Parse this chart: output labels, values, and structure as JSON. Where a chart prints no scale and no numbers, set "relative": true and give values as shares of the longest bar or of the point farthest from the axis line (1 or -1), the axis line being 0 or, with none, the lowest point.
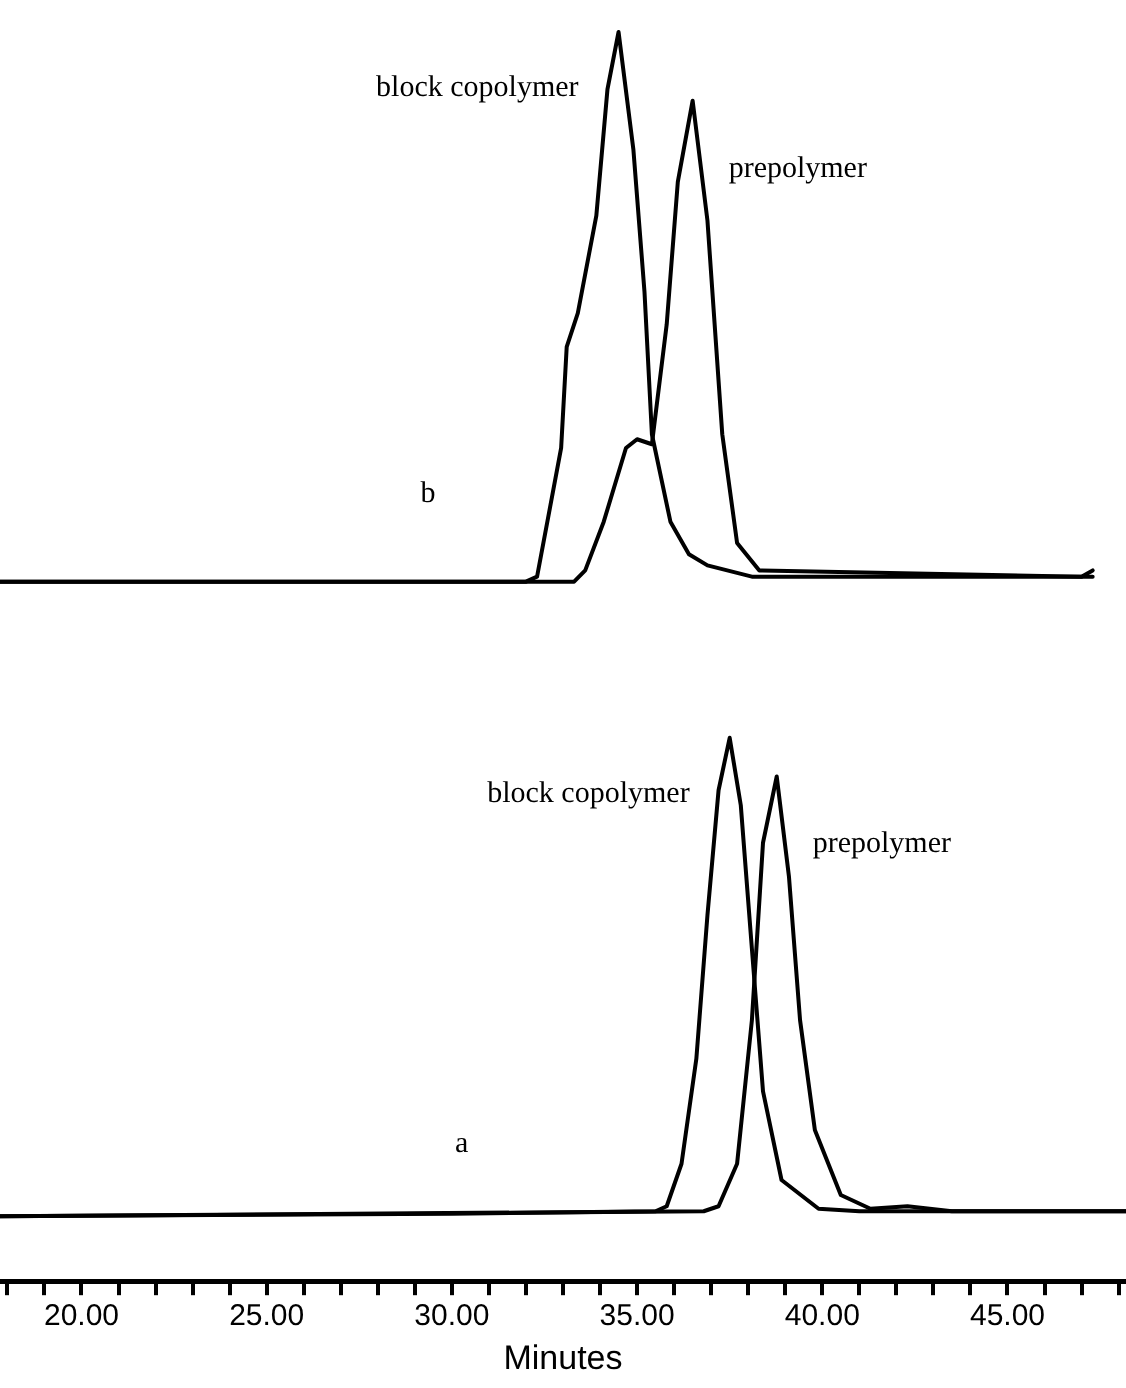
{
  "chart_data": {
    "type": "line",
    "relative": true,
    "xlabel": "Minutes",
    "xlim": [
      17.8,
      48.2
    ],
    "legend": false,
    "grid": false,
    "marker": "none",
    "line_style": "solid",
    "annotations": [
      "b",
      "a"
    ],
    "xticks": [
      {
        "value": 18,
        "label": null
      },
      {
        "value": 19,
        "label": null
      },
      {
        "value": 20,
        "label": "20.00"
      },
      {
        "value": 21,
        "label": null
      },
      {
        "value": 22,
        "label": null
      },
      {
        "value": 23,
        "label": null
      },
      {
        "value": 24,
        "label": null
      },
      {
        "value": 25,
        "label": "25.00"
      },
      {
        "value": 26,
        "label": null
      },
      {
        "value": 27,
        "label": null
      },
      {
        "value": 28,
        "label": null
      },
      {
        "value": 29,
        "label": null
      },
      {
        "value": 30,
        "label": "30.00"
      },
      {
        "value": 31,
        "label": null
      },
      {
        "value": 32,
        "label": null
      },
      {
        "value": 33,
        "label": null
      },
      {
        "value": 34,
        "label": null
      },
      {
        "value": 35,
        "label": "35.00"
      },
      {
        "value": 36,
        "label": null
      },
      {
        "value": 37,
        "label": null
      },
      {
        "value": 38,
        "label": null
      },
      {
        "value": 39,
        "label": null
      },
      {
        "value": 40,
        "label": "40.00"
      },
      {
        "value": 41,
        "label": null
      },
      {
        "value": 42,
        "label": null
      },
      {
        "value": 43,
        "label": null
      },
      {
        "value": 44,
        "label": null
      },
      {
        "value": 45,
        "label": "45.00"
      },
      {
        "value": 46,
        "label": null
      },
      {
        "value": 47,
        "label": null
      },
      {
        "value": 48,
        "label": null
      }
    ],
    "series": [
      {
        "name": "block copolymer",
        "color": "#000000",
        "x": [
          17.8,
          32.0,
          32.3,
          32.95,
          33.1,
          33.4,
          33.9,
          34.2,
          34.5,
          34.9,
          35.2,
          35.4,
          35.9,
          36.4,
          36.9,
          38.1,
          47.3
        ],
        "values": [
          0.56,
          0.56,
          0.564,
          0.667,
          0.748,
          0.775,
          0.853,
          0.954,
          1,
          0.906,
          0.792,
          0.678,
          0.608,
          0.582,
          0.573,
          0.564,
          0.564
        ]
      },
      {
        "name": "prepolymer",
        "color": "#000000",
        "x": [
          17.8,
          33.3,
          33.6,
          34.1,
          34.7,
          35.0,
          35.4,
          35.8,
          36.1,
          36.5,
          36.9,
          37.3,
          37.7,
          38.3,
          47.0,
          47.3
        ],
        "values": [
          0.56,
          0.56,
          0.569,
          0.608,
          0.667,
          0.674,
          0.67,
          0.766,
          0.88,
          0.945,
          0.849,
          0.678,
          0.591,
          0.569,
          0.564,
          0.569
        ]
      },
      {
        "name": "block copolymer",
        "color": "#000000",
        "x": [
          17.8,
          30.0,
          35.5,
          35.8,
          36.2,
          36.6,
          36.9,
          37.2,
          37.5,
          37.8,
          38.1,
          38.4,
          38.9,
          39.9,
          41.0,
          48.2
        ],
        "values": [
          0.052,
          0.054,
          0.056,
          0.06,
          0.094,
          0.178,
          0.293,
          0.393,
          0.435,
          0.381,
          0.266,
          0.152,
          0.081,
          0.058,
          0.056,
          0.056
        ]
      },
      {
        "name": "prepolymer",
        "color": "#000000",
        "x": [
          17.8,
          36.8,
          37.2,
          37.7,
          38.1,
          38.4,
          38.77,
          39.1,
          39.4,
          39.8,
          40.5,
          41.3,
          42.3,
          43.5,
          48.2
        ],
        "values": [
          0.052,
          0.056,
          0.06,
          0.094,
          0.209,
          0.351,
          0.404,
          0.324,
          0.209,
          0.121,
          0.069,
          0.058,
          0.06,
          0.056,
          0.056
        ]
      }
    ]
  }
}
